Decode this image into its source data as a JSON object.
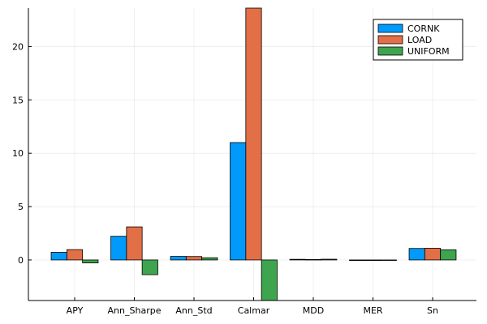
{
  "chart_data": {
    "type": "bar",
    "title": "",
    "xlabel": "",
    "ylabel": "",
    "categories": [
      "APY",
      "Ann_Sharpe",
      "Ann_Std",
      "Calmar",
      "MDD",
      "MER",
      "Sn"
    ],
    "series": [
      {
        "name": "CORNK",
        "color": "#009AFA",
        "values": [
          0.72,
          2.22,
          0.33,
          11.0,
          0.06,
          -0.05,
          1.08
        ]
      },
      {
        "name": "LOAD",
        "color": "#E36F47",
        "values": [
          0.97,
          3.1,
          0.32,
          23.6,
          0.04,
          -0.05,
          1.1
        ]
      },
      {
        "name": "UNIFORM",
        "color": "#3EA44E",
        "values": [
          -0.28,
          -1.38,
          0.21,
          -3.8,
          0.07,
          -0.04,
          0.95
        ]
      }
    ],
    "ylim": [
      -3.8,
      23.6
    ],
    "yticks": [
      0,
      5,
      10,
      15,
      20
    ],
    "grid": true,
    "legend": "top-right"
  }
}
